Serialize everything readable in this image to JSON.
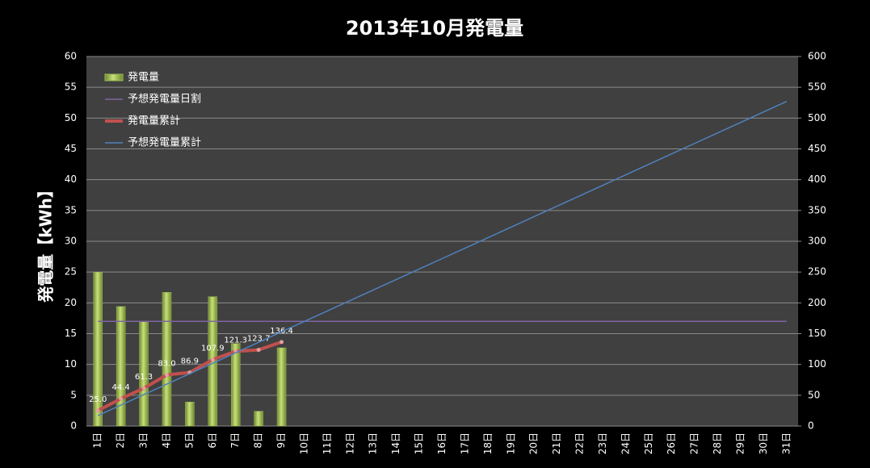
{
  "chart_data": {
    "type": "bar-line",
    "title": "2013年10月発電量",
    "y_label": "発電量【kWh】",
    "categories": [
      "1日",
      "2日",
      "3日",
      "4日",
      "5日",
      "6日",
      "7日",
      "8日",
      "9日",
      "10日",
      "11日",
      "12日",
      "13日",
      "14日",
      "15日",
      "16日",
      "17日",
      "18日",
      "19日",
      "20日",
      "21日",
      "22日",
      "23日",
      "24日",
      "25日",
      "26日",
      "27日",
      "28日",
      "29日",
      "30日",
      "31日"
    ],
    "ylim": [
      0,
      60
    ],
    "yticks": [
      0,
      5,
      10,
      15,
      20,
      25,
      30,
      35,
      40,
      45,
      50,
      55,
      60
    ],
    "y2lim": [
      0,
      600
    ],
    "y2ticks": [
      0,
      50,
      100,
      150,
      200,
      250,
      300,
      350,
      400,
      450,
      500,
      550,
      600
    ],
    "grid": true,
    "legend": "top-left",
    "series": [
      {
        "name": "発電量",
        "type": "bar",
        "color": "#9bbb59",
        "axis": "y",
        "values": [
          25.0,
          19.4,
          16.9,
          21.7,
          3.9,
          21.0,
          13.4,
          2.4,
          12.7,
          null,
          null,
          null,
          null,
          null,
          null,
          null,
          null,
          null,
          null,
          null,
          null,
          null,
          null,
          null,
          null,
          null,
          null,
          null,
          null,
          null,
          null
        ]
      },
      {
        "name": "予想発電量日割",
        "type": "line",
        "color": "#8064a2",
        "axis": "y",
        "values": [
          17,
          17,
          17,
          17,
          17,
          17,
          17,
          17,
          17,
          17,
          17,
          17,
          17,
          17,
          17,
          17,
          17,
          17,
          17,
          17,
          17,
          17,
          17,
          17,
          17,
          17,
          17,
          17,
          17,
          17,
          17
        ]
      },
      {
        "name": "発電量累計",
        "type": "line",
        "color": "#c0504d",
        "axis": "y2",
        "values": [
          25.0,
          44.4,
          61.3,
          83.0,
          86.9,
          107.9,
          121.3,
          123.7,
          136.4,
          null,
          null,
          null,
          null,
          null,
          null,
          null,
          null,
          null,
          null,
          null,
          null,
          null,
          null,
          null,
          null,
          null,
          null,
          null,
          null,
          null,
          null
        ],
        "value_labels": [
          "25.0",
          "44.4",
          "61.3",
          "83.0",
          "86.9",
          "107.9",
          "121.3",
          "123.7",
          "136.4",
          null,
          null,
          null,
          null,
          null,
          null,
          null,
          null,
          null,
          null,
          null,
          null,
          null,
          null,
          null,
          null,
          null,
          null,
          null,
          null,
          null,
          null
        ]
      },
      {
        "name": "予想発電量累計",
        "type": "line",
        "color": "#4f81bd",
        "axis": "y2",
        "values": [
          17,
          34,
          51,
          68,
          85,
          102,
          119,
          136,
          153,
          170,
          187,
          204,
          221,
          238,
          255,
          272,
          289,
          306,
          323,
          340,
          357,
          374,
          391,
          408,
          425,
          442,
          459,
          476,
          493,
          510,
          527
        ]
      }
    ]
  }
}
